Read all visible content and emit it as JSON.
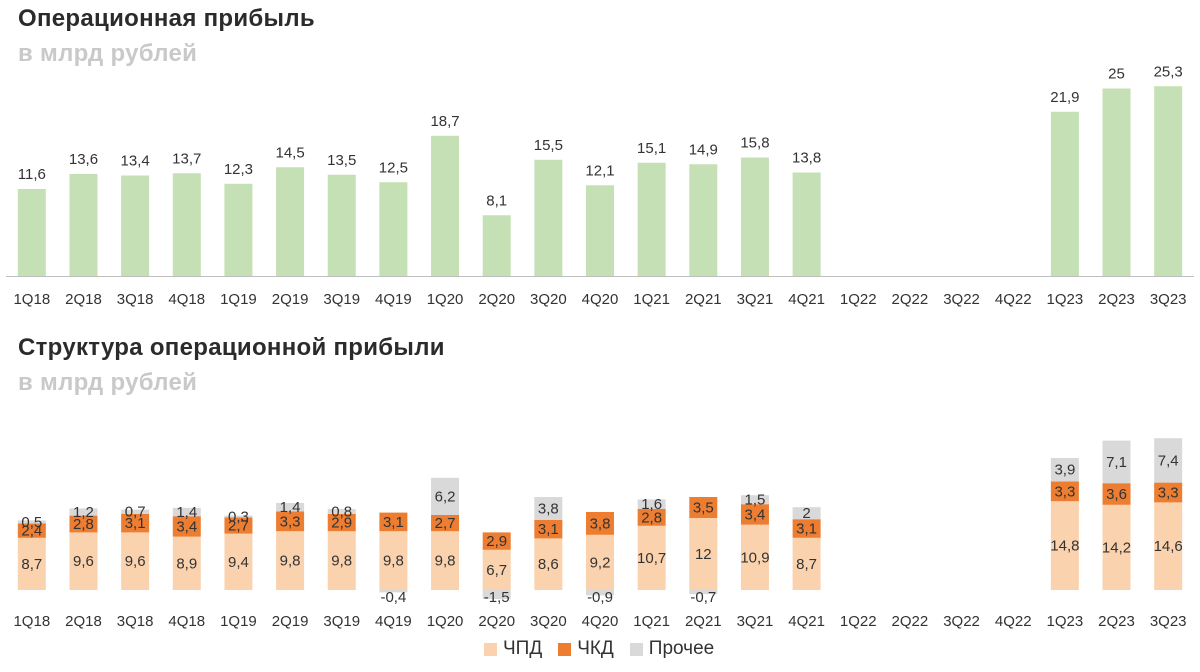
{
  "chart1": {
    "title": "Операционная прибыль",
    "subtitle": "в млрд рублей"
  },
  "chart2": {
    "title": "Структура операционной прибыли",
    "subtitle": "в млрд рублей"
  },
  "legend": [
    {
      "label": "ЧПД",
      "color": "#fbd2ae"
    },
    {
      "label": "ЧКД",
      "color": "#ed7d31"
    },
    {
      "label": "Прочее",
      "color": "#d9d9d9"
    }
  ],
  "colors": {
    "operating_profit": "#c5e0b4",
    "chpd": "#fbd2ae",
    "chkd": "#ed7d31",
    "other": "#d9d9d9",
    "axis": "#bfbfbf"
  },
  "chart_data": [
    {
      "type": "bar",
      "title": "Операционная прибыль",
      "subtitle": "в млрд рублей",
      "categories": [
        "1Q18",
        "2Q18",
        "3Q18",
        "4Q18",
        "1Q19",
        "2Q19",
        "3Q19",
        "4Q19",
        "1Q20",
        "2Q20",
        "3Q20",
        "4Q20",
        "1Q21",
        "2Q21",
        "3Q21",
        "4Q21",
        "1Q22",
        "2Q22",
        "3Q22",
        "4Q22",
        "1Q23",
        "2Q23",
        "3Q23"
      ],
      "values": [
        11.6,
        13.6,
        13.4,
        13.7,
        12.3,
        14.5,
        13.5,
        12.5,
        18.7,
        8.1,
        15.5,
        12.1,
        15.1,
        14.9,
        15.8,
        13.8,
        null,
        null,
        null,
        null,
        21.9,
        25,
        25.3
      ],
      "labels": [
        "11,6",
        "13,6",
        "13,4",
        "13,7",
        "12,3",
        "14,5",
        "13,5",
        "12,5",
        "18,7",
        "8,1",
        "15,5",
        "12,1",
        "15,1",
        "14,9",
        "15,8",
        "13,8",
        "",
        "",
        "",
        "",
        "21,9",
        "25",
        "25,3"
      ],
      "ylim": [
        0,
        28
      ]
    },
    {
      "type": "bar",
      "stacked": true,
      "title": "Структура операционной прибыли",
      "subtitle": "в млрд рублей",
      "categories": [
        "1Q18",
        "2Q18",
        "3Q18",
        "4Q18",
        "1Q19",
        "2Q19",
        "3Q19",
        "4Q19",
        "1Q20",
        "2Q20",
        "3Q20",
        "4Q20",
        "1Q21",
        "2Q21",
        "3Q21",
        "4Q21",
        "1Q22",
        "2Q22",
        "3Q22",
        "4Q22",
        "1Q23",
        "2Q23",
        "3Q23"
      ],
      "series": [
        {
          "name": "ЧПД",
          "values": [
            8.7,
            9.6,
            9.6,
            8.9,
            9.4,
            9.8,
            9.8,
            9.8,
            9.8,
            6.7,
            8.6,
            9.2,
            10.7,
            12,
            10.9,
            8.7,
            null,
            null,
            null,
            null,
            14.8,
            14.2,
            14.6
          ],
          "labels": [
            "8,7",
            "9,6",
            "9,6",
            "8,9",
            "9,4",
            "9,8",
            "9,8",
            "9,8",
            "9,8",
            "6,7",
            "8,6",
            "9,2",
            "10,7",
            "12",
            "10,9",
            "8,7",
            "",
            "",
            "",
            "",
            "14,8",
            "14,2",
            "14,6"
          ]
        },
        {
          "name": "ЧКД",
          "values": [
            2.4,
            2.8,
            3.1,
            3.4,
            2.7,
            3.3,
            2.9,
            3.1,
            2.7,
            2.9,
            3.1,
            3.8,
            2.8,
            3.5,
            3.4,
            3.1,
            null,
            null,
            null,
            null,
            3.3,
            3.6,
            3.3
          ],
          "labels": [
            "2,4",
            "2,8",
            "3,1",
            "3,4",
            "2,7",
            "3,3",
            "2,9",
            "3,1",
            "2,7",
            "2,9",
            "3,1",
            "3,8",
            "2,8",
            "3,5",
            "3,4",
            "3,1",
            "",
            "",
            "",
            "",
            "3,3",
            "3,6",
            "3,3"
          ]
        },
        {
          "name": "Прочее",
          "values": [
            0.5,
            1.2,
            0.7,
            1.4,
            0.3,
            1.4,
            0.8,
            -0.4,
            6.2,
            -1.5,
            3.8,
            -0.9,
            1.6,
            -0.7,
            1.5,
            2,
            null,
            null,
            null,
            null,
            3.9,
            7.1,
            7.4
          ],
          "labels": [
            "0,5",
            "1,2",
            "0,7",
            "1,4",
            "0,3",
            "1,4",
            "0,8",
            "-0,4",
            "6,2",
            "-1,5",
            "3,8",
            "-0,9",
            "1,6",
            "-0,7",
            "1,5",
            "2",
            "",
            "",
            "",
            "",
            "3,9",
            "7,1",
            "7,4"
          ]
        }
      ],
      "ylim": [
        -2,
        28
      ]
    }
  ]
}
